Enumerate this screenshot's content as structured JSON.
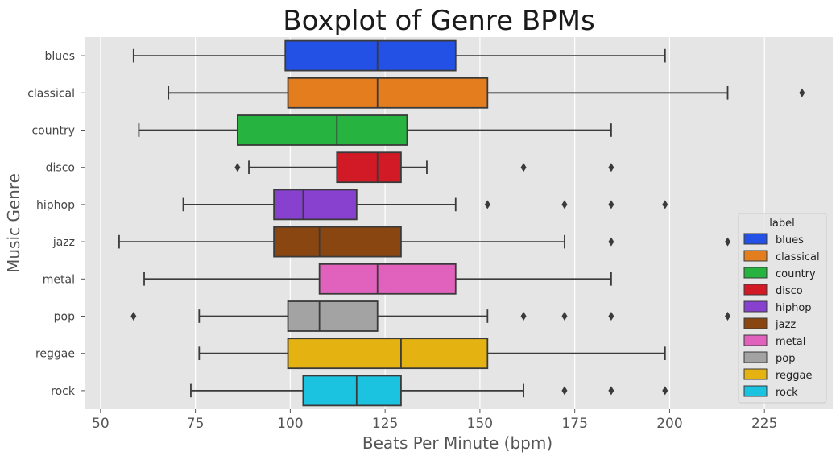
{
  "chart_data": {
    "type": "box",
    "orientation": "horizontal",
    "title": "Boxplot of Genre BPMs",
    "xlabel": "Beats Per Minute (bpm)",
    "ylabel": "Music Genre",
    "xlim": [
      46,
      243
    ],
    "xticks": [
      50,
      75,
      100,
      125,
      150,
      175,
      200,
      225
    ],
    "grid": true,
    "legend": {
      "title": "label",
      "placement": "right"
    },
    "categories": [
      "blues",
      "classical",
      "country",
      "disco",
      "hiphop",
      "jazz",
      "metal",
      "pop",
      "reggae",
      "rock"
    ],
    "series": [
      {
        "name": "blues",
        "color": "#2351e6",
        "whisker_low": 58.7,
        "q1": 98.7,
        "median": 123.0,
        "q3": 143.6,
        "whisker_high": 198.8,
        "outliers": []
      },
      {
        "name": "classical",
        "color": "#e47d1e",
        "whisker_low": 67.9,
        "q1": 99.4,
        "median": 123.0,
        "q3": 152.0,
        "whisker_high": 215.3,
        "outliers": [
          234.9
        ]
      },
      {
        "name": "country",
        "color": "#27b33f",
        "whisker_low": 60.1,
        "q1": 86.1,
        "median": 112.3,
        "q3": 130.8,
        "whisker_high": 184.6,
        "outliers": []
      },
      {
        "name": "disco",
        "color": "#d11a25",
        "whisker_low": 89.1,
        "q1": 112.3,
        "median": 123.0,
        "q3": 129.2,
        "whisker_high": 136.0,
        "outliers": [
          86.1,
          161.5,
          184.6
        ]
      },
      {
        "name": "hiphop",
        "color": "#8840cf",
        "whisker_low": 71.8,
        "q1": 95.7,
        "median": 103.4,
        "q3": 117.5,
        "whisker_high": 143.6,
        "outliers": [
          152.0,
          172.3,
          184.6,
          198.8
        ]
      },
      {
        "name": "jazz",
        "color": "#8a4611",
        "whisker_low": 54.9,
        "q1": 95.7,
        "median": 107.7,
        "q3": 129.2,
        "whisker_high": 172.3,
        "outliers": [
          184.6,
          215.3
        ]
      },
      {
        "name": "metal",
        "color": "#e162bd",
        "whisker_low": 61.5,
        "q1": 107.7,
        "median": 123.0,
        "q3": 143.6,
        "whisker_high": 184.6,
        "outliers": []
      },
      {
        "name": "pop",
        "color": "#a3a3a3",
        "whisker_low": 76.0,
        "q1": 99.4,
        "median": 107.7,
        "q3": 123.0,
        "whisker_high": 152.0,
        "outliers": [
          58.7,
          161.5,
          172.3,
          184.6,
          215.3
        ]
      },
      {
        "name": "reggae",
        "color": "#e4b311",
        "whisker_low": 76.0,
        "q1": 99.4,
        "median": 129.2,
        "q3": 152.0,
        "whisker_high": 198.8,
        "outliers": []
      },
      {
        "name": "rock",
        "color": "#1cc3e1",
        "whisker_low": 73.8,
        "q1": 103.4,
        "median": 117.5,
        "q3": 129.2,
        "whisker_high": 161.5,
        "outliers": [
          172.3,
          184.6,
          198.8
        ]
      }
    ]
  }
}
